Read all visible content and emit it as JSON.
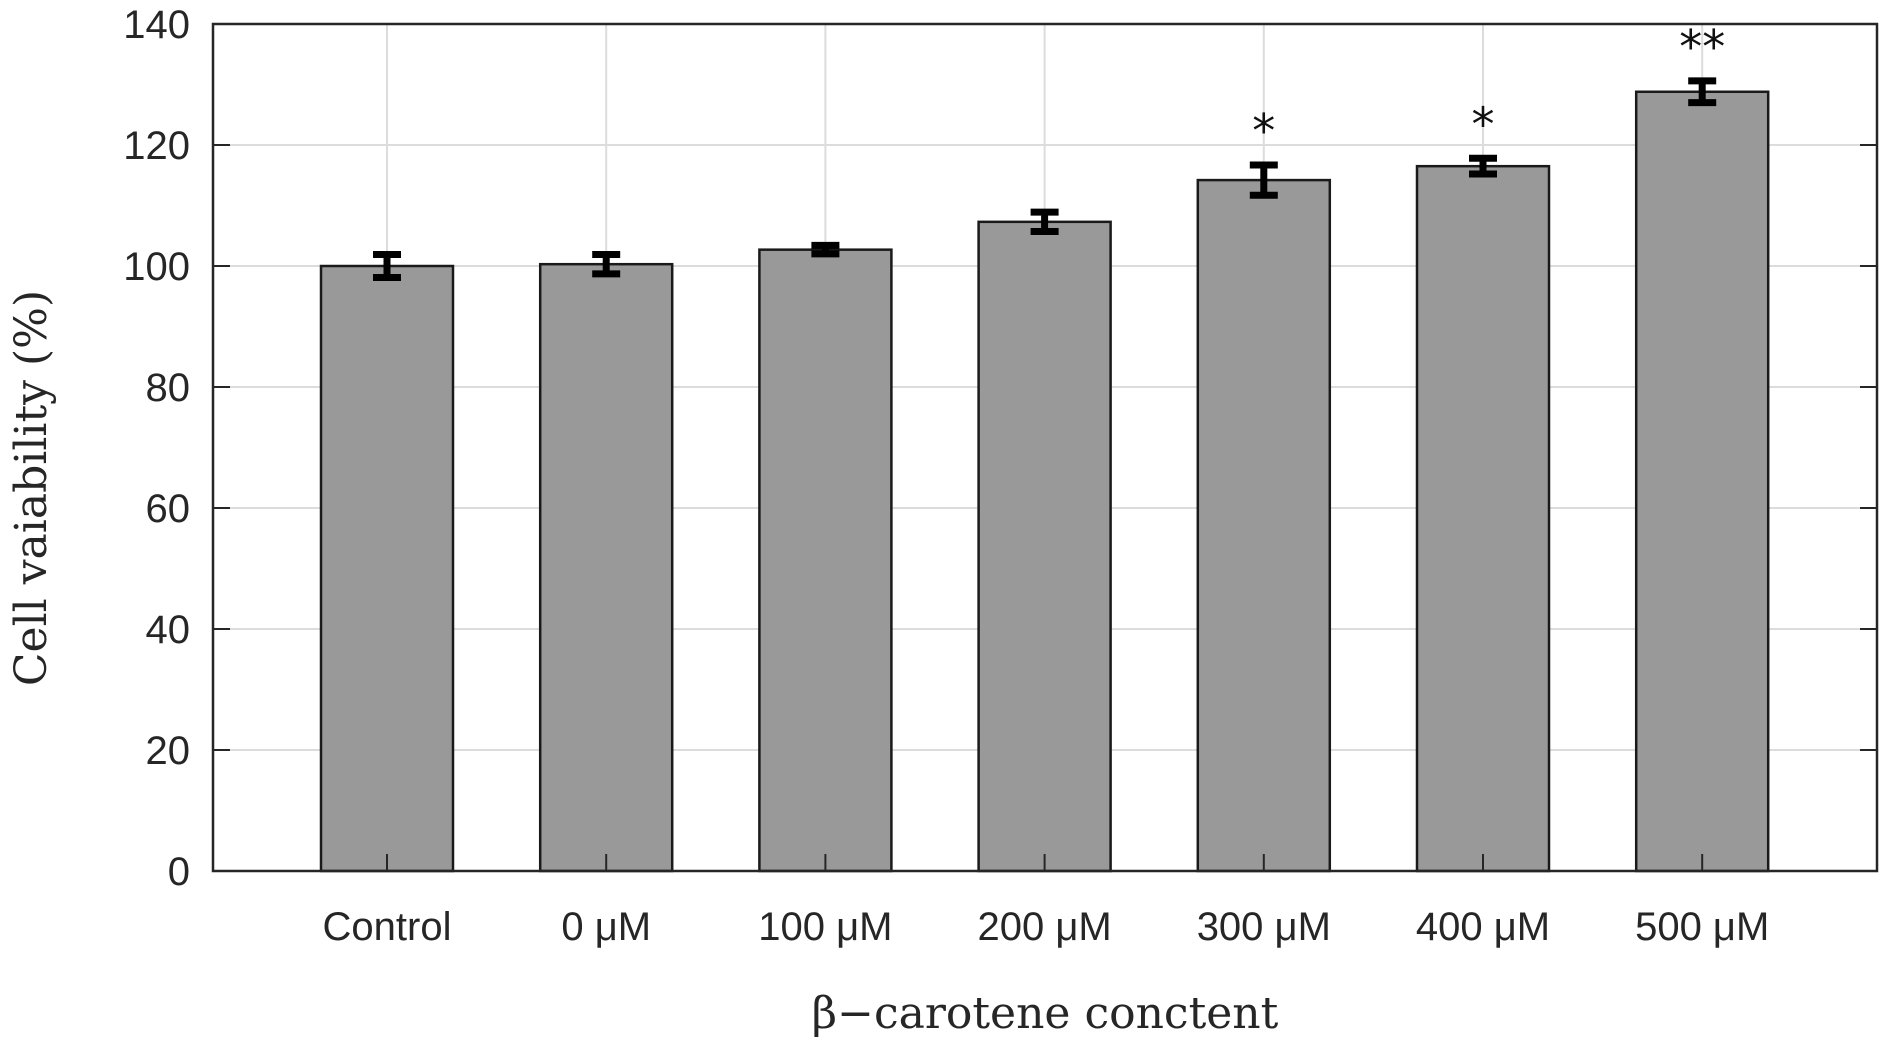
{
  "chart_data": {
    "type": "bar",
    "title": "",
    "xlabel": "β−carotene conctent",
    "ylabel": "Cell vaiability (%)",
    "categories": [
      "Control",
      "0 μM",
      "100 μM",
      "200 μM",
      "300 μM",
      "400 μM",
      "500 μM"
    ],
    "values": [
      100.0,
      100.3,
      102.7,
      107.3,
      114.2,
      116.5,
      128.8
    ],
    "errors": [
      1.9,
      1.6,
      0.7,
      1.6,
      2.5,
      1.3,
      1.8
    ],
    "significance": [
      "",
      "",
      "",
      "",
      "*",
      "*",
      "**"
    ],
    "ylim": [
      0,
      140
    ],
    "yticks": [
      0,
      20,
      40,
      60,
      80,
      100,
      120,
      140
    ],
    "grid": true,
    "legend": null,
    "colors": {
      "bar_fill": "#999999",
      "bar_edge": "#1a1a1a",
      "error_bar": "#000000",
      "grid": "#dcdcdc",
      "axis": "#262626"
    }
  }
}
